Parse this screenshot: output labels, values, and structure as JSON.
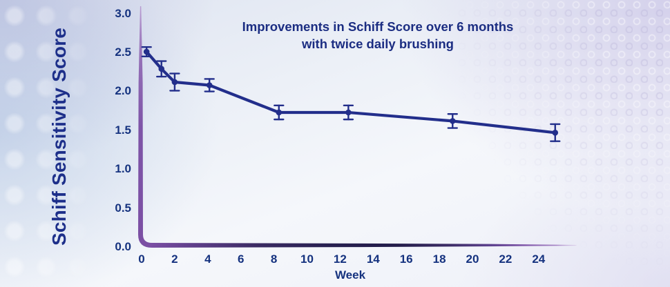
{
  "panel": {
    "title_line1": "Improvements in Schiff Score over 6 months",
    "title_line2": "with twice daily brushing"
  },
  "y_axis": {
    "label": "Schiff Sensitivity Score",
    "tick_labels": [
      "3.0",
      "2.5",
      "2.0",
      "1.5",
      "1.0",
      "0.5",
      "0.0"
    ]
  },
  "x_axis": {
    "label": "Week",
    "tick_labels": [
      "0",
      "2",
      "4",
      "6",
      "8",
      "10",
      "12",
      "14",
      "16",
      "18",
      "20",
      "22",
      "24"
    ]
  },
  "colors": {
    "series_line": "#222e8b",
    "text_navy": "#15327f",
    "axis_purple": "#7b4fa4",
    "axis_dark_indigo": "#241d4a"
  },
  "chart_data": {
    "type": "line",
    "title": "Improvements in Schiff Score over 6 months with twice daily brushing",
    "xlabel": "Week",
    "ylabel": "Schiff Sensitivity Score",
    "xlim": [
      0,
      26.5
    ],
    "ylim": [
      0,
      3
    ],
    "x_ticks": [
      0,
      2,
      4,
      6,
      8,
      10,
      12,
      14,
      16,
      18,
      20,
      22,
      24
    ],
    "y_ticks": [
      3.0,
      2.5,
      2.0,
      1.5,
      1.0,
      0.5,
      0.0
    ],
    "grid": false,
    "legend": false,
    "series": [
      {
        "name": "Schiff Sensitivity Score with twice daily brushing",
        "marker": "circle",
        "error_bars": true,
        "x": [
          0.3,
          1.2,
          2,
          4.1,
          8.3,
          12.5,
          18.8,
          25
        ],
        "y": [
          2.5,
          2.28,
          2.11,
          2.07,
          1.72,
          1.72,
          1.61,
          1.46
        ],
        "y_error": [
          0.06,
          0.1,
          0.11,
          0.08,
          0.09,
          0.09,
          0.09,
          0.11
        ]
      }
    ]
  }
}
